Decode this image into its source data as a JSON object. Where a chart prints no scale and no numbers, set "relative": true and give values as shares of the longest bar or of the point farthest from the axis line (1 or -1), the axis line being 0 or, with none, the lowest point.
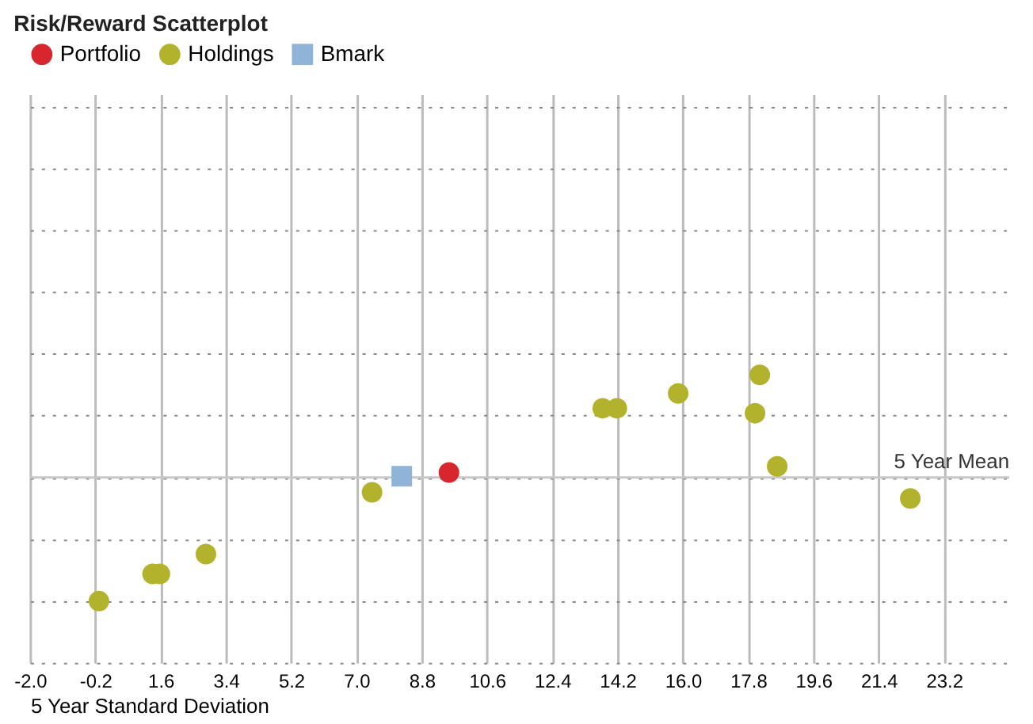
{
  "chart_data": {
    "type": "scatter",
    "title": "Risk/Reward Scatterplot",
    "xlabel": "5 Year Standard Deviation",
    "relative": true,
    "xlim": [
      -2.0,
      25.0
    ],
    "xticks": [
      {
        "value": -2,
        "label": "-2.0"
      },
      {
        "value": -0.2,
        "label": "-0.2"
      },
      1.6,
      3.4,
      5.2,
      {
        "value": 7,
        "label": "7.0"
      },
      8.8,
      10.6,
      12.4,
      14.2,
      {
        "value": 16,
        "label": "16.0"
      },
      17.8,
      19.6,
      21.4,
      23.2
    ],
    "series": [
      {
        "name": "Portfolio",
        "color": "#d7262e",
        "marker": "circle",
        "x": [
          9.55
        ],
        "values": [
          0.04
        ]
      },
      {
        "name": "Holdings",
        "color": "#b3b22c",
        "marker": "circle",
        "x": [
          -0.1,
          1.38,
          1.58,
          2.85,
          7.43,
          13.79,
          14.18,
          15.87,
          18.12,
          17.99,
          18.6,
          22.27
        ],
        "values": [
          -1.0,
          -0.78,
          -0.78,
          -0.62,
          -0.12,
          0.56,
          0.56,
          0.68,
          0.83,
          0.52,
          0.09,
          -0.17
        ]
      },
      {
        "name": "Bmark",
        "color": "#8fb4d8",
        "marker": "square",
        "x": [
          8.25
        ],
        "values": [
          0.01
        ]
      }
    ],
    "ref_lines": [
      {
        "axis": "y",
        "value": 0,
        "label": "5 Year Mean",
        "color": "#c8c8c8"
      }
    ],
    "grid": true,
    "legend": "top",
    "tick_labels": "x"
  }
}
